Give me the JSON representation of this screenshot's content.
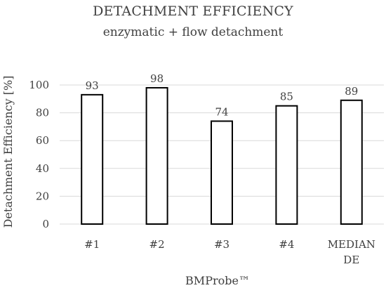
{
  "chart_data": {
    "type": "bar",
    "title": "DETACHMENT EFFICIENCY",
    "subtitle": "enzymatic + flow detachment",
    "xlabel": "BMProbe™",
    "ylabel": "Detachment Efficiency [%]",
    "categories": [
      [
        "#1"
      ],
      [
        "#2"
      ],
      [
        "#3"
      ],
      [
        "#4"
      ],
      [
        "MEDIAN",
        "DE"
      ]
    ],
    "values": [
      93,
      98,
      74,
      85,
      89
    ],
    "data_labels": [
      "93",
      "98",
      "74",
      "85",
      "89"
    ],
    "ylim": [
      0,
      100
    ],
    "yticks": [
      0,
      20,
      40,
      60,
      80,
      100
    ],
    "grid": true,
    "legend": "none",
    "colors": {
      "bar_fill": "#ffffff",
      "bar_stroke": "#000000",
      "grid": "#d9d9d9",
      "text": "#404040"
    }
  }
}
